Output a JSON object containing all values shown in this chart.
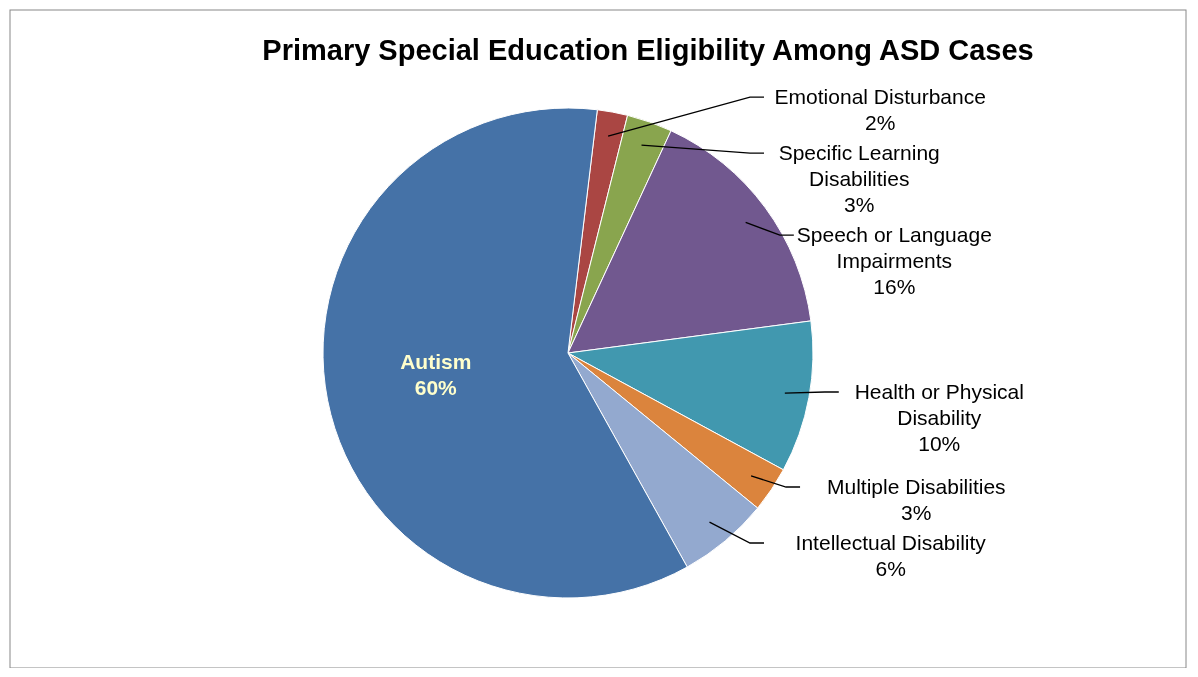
{
  "chart_data": {
    "type": "pie",
    "title": "Primary Special Education Eligibility Among ASD Cases",
    "categories": [
      "Emotional Disturbance",
      "Specific Learning Disabilities",
      "Speech or Language Impairments",
      "Health or Physical Disability",
      "Multiple Disabilities",
      "Intellectual Disability",
      "Autism"
    ],
    "values": [
      2,
      3,
      16,
      10,
      3,
      6,
      60
    ],
    "value_labels": [
      "2%",
      "3%",
      "16%",
      "10%",
      "3%",
      "6%",
      "60%"
    ],
    "colors": [
      "#aa4643",
      "#89a54e",
      "#71588f",
      "#4198af",
      "#db843d",
      "#93a9cf",
      "#4572a7"
    ]
  }
}
